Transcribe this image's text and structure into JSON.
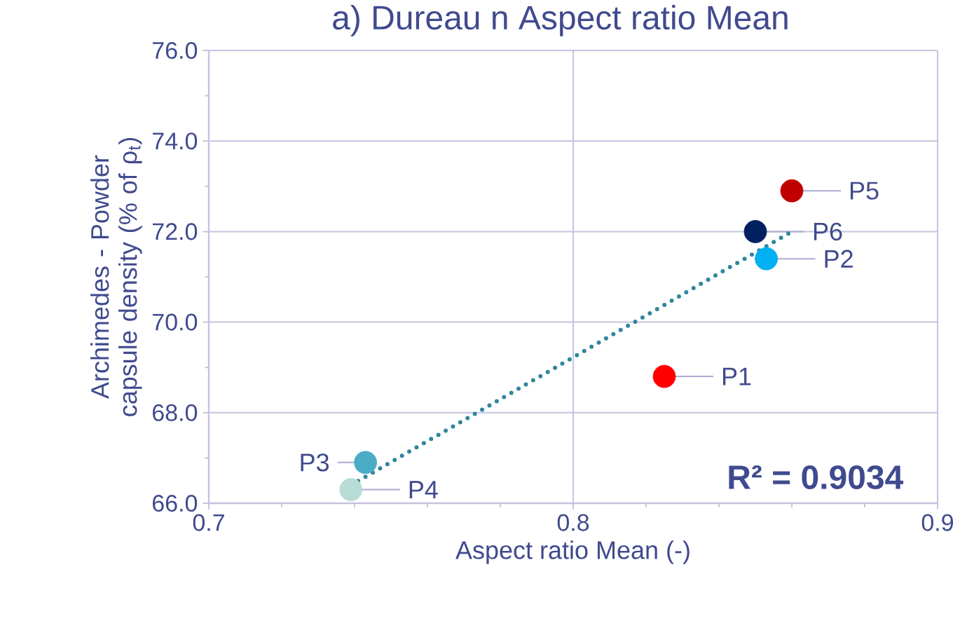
{
  "chart_data": {
    "type": "scatter",
    "title": "a) Dureau n Aspect ratio Mean",
    "xlabel": "Aspect ratio Mean (-)",
    "ylabel": "Archimedes - Powder capsule density (% of ρ$_{t}$)",
    "xlim": [
      0.7,
      0.9
    ],
    "xticks": [
      0.7,
      0.8,
      0.9
    ],
    "ylim": [
      66,
      76
    ],
    "yticks": [
      {
        "value": 66,
        "label": "66.0"
      },
      {
        "value": 68,
        "label": "68.0"
      },
      {
        "value": 70,
        "label": "70.0"
      },
      {
        "value": 72,
        "label": "72.0"
      },
      {
        "value": 74,
        "label": "74.0"
      },
      {
        "value": 76,
        "label": "76.0"
      }
    ],
    "grid": true,
    "marker": "circle",
    "series": [
      {
        "name": "P1",
        "color": "#ff0000",
        "x": [
          0.825
        ],
        "values": [
          68.8
        ]
      },
      {
        "name": "P2",
        "color": "#00b0f0",
        "x": [
          0.853
        ],
        "values": [
          71.4
        ]
      },
      {
        "name": "P3",
        "color": "#4bacc6",
        "x": [
          0.743
        ],
        "values": [
          66.9
        ]
      },
      {
        "name": "P4",
        "color": "#b7dcd6",
        "x": [
          0.739
        ],
        "values": [
          66.3
        ]
      },
      {
        "name": "P5",
        "color": "#c00000",
        "x": [
          0.86
        ],
        "values": [
          72.9
        ]
      },
      {
        "name": "P6",
        "color": "#002060",
        "x": [
          0.85
        ],
        "values": [
          72.0
        ]
      },
      {
        "type": "line",
        "color": "#31859c",
        "line_style": "dotted",
        "marker": "none",
        "x": [
          0.739,
          0.86
        ],
        "values": [
          66.4,
          72.0
        ]
      }
    ],
    "annotations": [
      "**R² = 0.9034**"
    ]
  }
}
